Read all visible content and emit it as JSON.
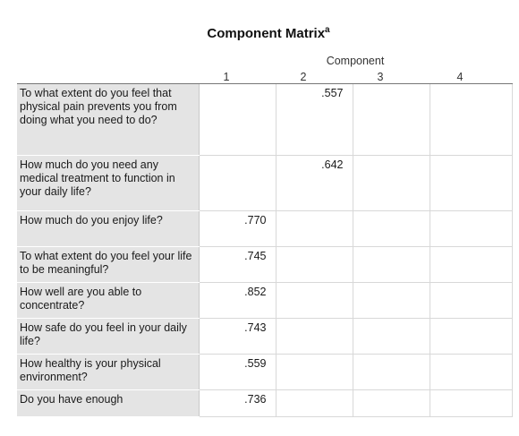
{
  "table": {
    "title": "Component Matrix",
    "title_superscript": "a",
    "group_header": "Component",
    "columns": [
      "1",
      "2",
      "3",
      "4"
    ],
    "rows": [
      {
        "label": "To what extent do you feel that physical pain prevents you from doing what you need to do?",
        "values": [
          "",
          ".557",
          "",
          ""
        ]
      },
      {
        "label": "How much do you need any medical treatment to function in your daily life?",
        "values": [
          "",
          ".642",
          "",
          ""
        ]
      },
      {
        "label": "How much do you enjoy life?",
        "values": [
          ".770",
          "",
          "",
          ""
        ]
      },
      {
        "label": "To what extent do you feel your life to be meaningful?",
        "values": [
          ".745",
          "",
          "",
          ""
        ]
      },
      {
        "label": "How well are you able to concentrate?",
        "values": [
          ".852",
          "",
          "",
          ""
        ]
      },
      {
        "label": "How safe do you feel in your daily life?",
        "values": [
          ".743",
          "",
          "",
          ""
        ]
      },
      {
        "label": "How healthy is your physical environment?",
        "values": [
          ".559",
          "",
          "",
          ""
        ]
      },
      {
        "label": "Do you have enough",
        "values": [
          ".736",
          "",
          "",
          ""
        ]
      }
    ]
  }
}
